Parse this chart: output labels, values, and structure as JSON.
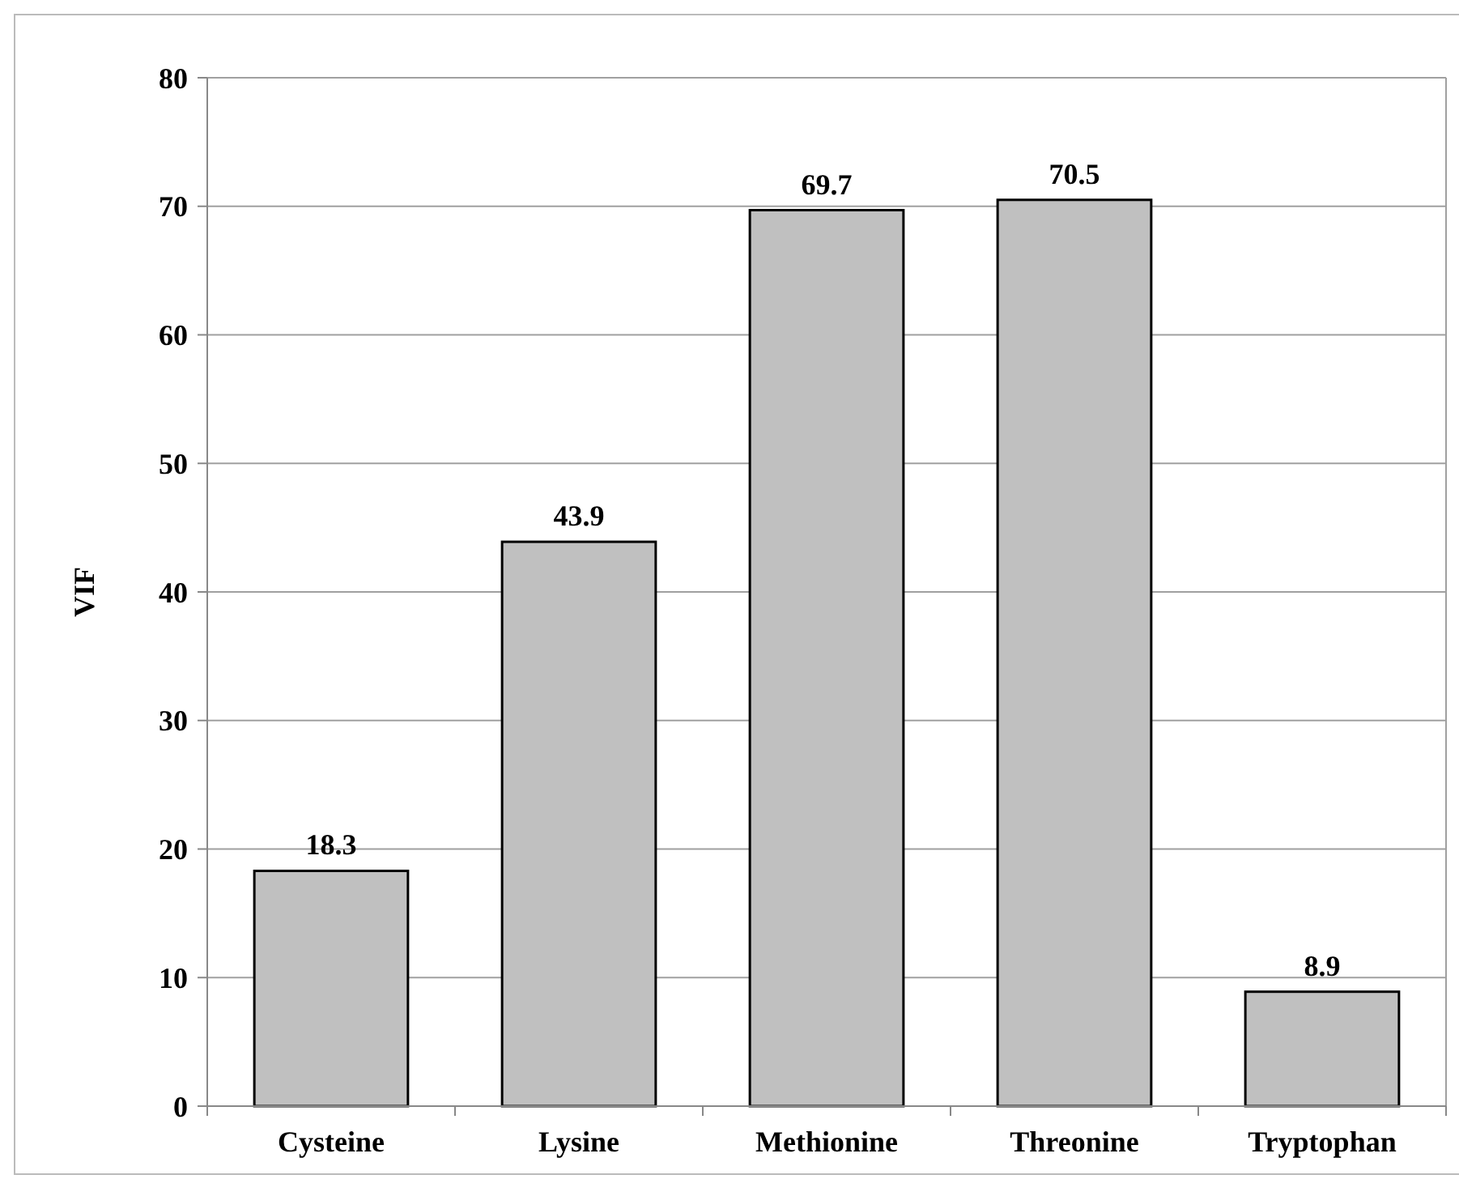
{
  "chart_data": {
    "type": "bar",
    "ylabel": "VIF",
    "categories": [
      "Cysteine",
      "Lysine",
      "Methionine",
      "Threonine",
      "Tryptophan"
    ],
    "values": [
      18.3,
      43.9,
      69.7,
      70.5,
      8.9
    ],
    "color": "#c0c0c0",
    "ylim": [
      0,
      80
    ],
    "yticks": [
      0,
      10,
      20,
      30,
      40,
      50,
      60,
      70,
      80
    ],
    "grid": "y",
    "data_labels": true
  }
}
